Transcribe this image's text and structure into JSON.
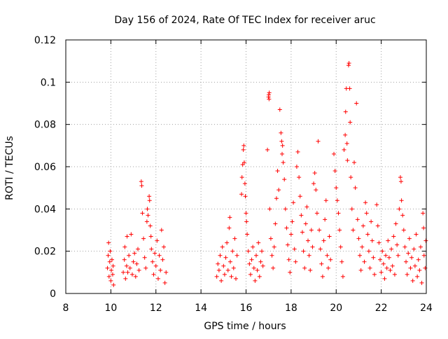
{
  "chart_data": {
    "type": "scatter",
    "title": "Day 156 of 2024, Rate Of TEC Index for receiver aruc",
    "xlabel": "GPS time / hours",
    "ylabel": "ROTI / TECUs",
    "xlim": [
      8,
      24
    ],
    "ylim": [
      0,
      0.12
    ],
    "x_ticks": [
      "8",
      "10",
      "12",
      "14",
      "16",
      "18",
      "20",
      "22",
      "24"
    ],
    "y_ticks": [
      "0",
      "0.02",
      "0.04",
      "0.06",
      "0.08",
      "0.1",
      "0.12"
    ],
    "x_tick_values": [
      8,
      10,
      12,
      14,
      16,
      18,
      20,
      22,
      24
    ],
    "y_tick_values": [
      0,
      0.02,
      0.04,
      0.06,
      0.08,
      0.1,
      0.12
    ],
    "grid": true,
    "marker": "+",
    "series_color": "#ff0000",
    "series": [
      {
        "points": [
          [
            9.85,
            0.012
          ],
          [
            9.88,
            0.018
          ],
          [
            9.9,
            0.024
          ],
          [
            9.92,
            0.008
          ],
          [
            9.95,
            0.015
          ],
          [
            9.97,
            0.02
          ],
          [
            10.0,
            0.006
          ],
          [
            10.02,
            0.011
          ],
          [
            10.05,
            0.016
          ],
          [
            10.08,
            0.009
          ],
          [
            10.1,
            0.013
          ],
          [
            10.12,
            0.004
          ],
          [
            10.55,
            0.01
          ],
          [
            10.6,
            0.016
          ],
          [
            10.62,
            0.022
          ],
          [
            10.65,
            0.007
          ],
          [
            10.7,
            0.013
          ],
          [
            10.72,
            0.027
          ],
          [
            10.75,
            0.01
          ],
          [
            10.8,
            0.018
          ],
          [
            10.85,
            0.012
          ],
          [
            10.9,
            0.028
          ],
          [
            10.95,
            0.009
          ],
          [
            11.0,
            0.015
          ],
          [
            11.05,
            0.019
          ],
          [
            11.1,
            0.008
          ],
          [
            11.15,
            0.014
          ],
          [
            11.2,
            0.021
          ],
          [
            11.25,
            0.011
          ],
          [
            11.35,
            0.053
          ],
          [
            11.37,
            0.051
          ],
          [
            11.4,
            0.038
          ],
          [
            11.45,
            0.026
          ],
          [
            11.5,
            0.017
          ],
          [
            11.55,
            0.012
          ],
          [
            11.6,
            0.034
          ],
          [
            11.62,
            0.04
          ],
          [
            11.65,
            0.037
          ],
          [
            11.7,
            0.046
          ],
          [
            11.72,
            0.044
          ],
          [
            11.75,
            0.032
          ],
          [
            11.78,
            0.027
          ],
          [
            11.8,
            0.021
          ],
          [
            11.85,
            0.015
          ],
          [
            11.9,
            0.009
          ],
          [
            11.95,
            0.019
          ],
          [
            12.0,
            0.013
          ],
          [
            12.05,
            0.025
          ],
          [
            12.1,
            0.007
          ],
          [
            12.15,
            0.018
          ],
          [
            12.2,
            0.011
          ],
          [
            12.25,
            0.03
          ],
          [
            12.3,
            0.016
          ],
          [
            12.35,
            0.022
          ],
          [
            12.4,
            0.005
          ],
          [
            12.45,
            0.01
          ],
          [
            14.7,
            0.008
          ],
          [
            14.75,
            0.014
          ],
          [
            14.8,
            0.011
          ],
          [
            14.85,
            0.018
          ],
          [
            14.9,
            0.006
          ],
          [
            14.95,
            0.022
          ],
          [
            15.0,
            0.013
          ],
          [
            15.05,
            0.009
          ],
          [
            15.1,
            0.017
          ],
          [
            15.15,
            0.024
          ],
          [
            15.2,
            0.011
          ],
          [
            15.25,
            0.031
          ],
          [
            15.28,
            0.036
          ],
          [
            15.3,
            0.015
          ],
          [
            15.35,
            0.008
          ],
          [
            15.4,
            0.02
          ],
          [
            15.45,
            0.012
          ],
          [
            15.5,
            0.026
          ],
          [
            15.55,
            0.007
          ],
          [
            15.6,
            0.018
          ],
          [
            15.8,
            0.047
          ],
          [
            15.82,
            0.055
          ],
          [
            15.85,
            0.061
          ],
          [
            15.88,
            0.068
          ],
          [
            15.9,
            0.07
          ],
          [
            15.92,
            0.062
          ],
          [
            15.95,
            0.052
          ],
          [
            15.97,
            0.046
          ],
          [
            16.0,
            0.038
          ],
          [
            16.02,
            0.034
          ],
          [
            16.05,
            0.028
          ],
          [
            16.1,
            0.02
          ],
          [
            16.15,
            0.014
          ],
          [
            16.2,
            0.009
          ],
          [
            16.25,
            0.016
          ],
          [
            16.3,
            0.022
          ],
          [
            16.35,
            0.012
          ],
          [
            16.4,
            0.006
          ],
          [
            16.45,
            0.018
          ],
          [
            16.5,
            0.011
          ],
          [
            16.55,
            0.024
          ],
          [
            16.6,
            0.008
          ],
          [
            16.65,
            0.015
          ],
          [
            16.7,
            0.02
          ],
          [
            16.75,
            0.013
          ],
          [
            16.95,
            0.068
          ],
          [
            17.0,
            0.093
          ],
          [
            17.01,
            0.094
          ],
          [
            17.02,
            0.092
          ],
          [
            17.03,
            0.095
          ],
          [
            17.05,
            0.04
          ],
          [
            17.1,
            0.026
          ],
          [
            17.15,
            0.018
          ],
          [
            17.2,
            0.012
          ],
          [
            17.25,
            0.022
          ],
          [
            17.3,
            0.033
          ],
          [
            17.35,
            0.045
          ],
          [
            17.4,
            0.058
          ],
          [
            17.45,
            0.049
          ],
          [
            17.5,
            0.087
          ],
          [
            17.55,
            0.076
          ],
          [
            17.58,
            0.072
          ],
          [
            17.6,
            0.066
          ],
          [
            17.62,
            0.07
          ],
          [
            17.65,
            0.062
          ],
          [
            17.7,
            0.054
          ],
          [
            17.75,
            0.04
          ],
          [
            17.8,
            0.031
          ],
          [
            17.85,
            0.023
          ],
          [
            17.9,
            0.016
          ],
          [
            17.95,
            0.01
          ],
          [
            18.0,
            0.028
          ],
          [
            18.05,
            0.034
          ],
          [
            18.1,
            0.043
          ],
          [
            18.15,
            0.021
          ],
          [
            18.2,
            0.015
          ],
          [
            18.25,
            0.06
          ],
          [
            18.3,
            0.067
          ],
          [
            18.35,
            0.055
          ],
          [
            18.4,
            0.046
          ],
          [
            18.45,
            0.037
          ],
          [
            18.5,
            0.029
          ],
          [
            18.55,
            0.02
          ],
          [
            18.6,
            0.012
          ],
          [
            18.65,
            0.033
          ],
          [
            18.7,
            0.041
          ],
          [
            18.75,
            0.025
          ],
          [
            18.8,
            0.018
          ],
          [
            18.85,
            0.011
          ],
          [
            18.9,
            0.03
          ],
          [
            18.95,
            0.022
          ],
          [
            19.0,
            0.052
          ],
          [
            19.05,
            0.057
          ],
          [
            19.1,
            0.049
          ],
          [
            19.15,
            0.038
          ],
          [
            19.2,
            0.072
          ],
          [
            19.25,
            0.03
          ],
          [
            19.3,
            0.021
          ],
          [
            19.35,
            0.014
          ],
          [
            19.4,
            0.008
          ],
          [
            19.45,
            0.025
          ],
          [
            19.5,
            0.035
          ],
          [
            19.55,
            0.044
          ],
          [
            19.6,
            0.018
          ],
          [
            19.65,
            0.012
          ],
          [
            19.7,
            0.027
          ],
          [
            19.75,
            0.016
          ],
          [
            19.9,
            0.066
          ],
          [
            19.95,
            0.058
          ],
          [
            20.0,
            0.05
          ],
          [
            20.05,
            0.044
          ],
          [
            20.1,
            0.038
          ],
          [
            20.15,
            0.03
          ],
          [
            20.2,
            0.022
          ],
          [
            20.25,
            0.015
          ],
          [
            20.3,
            0.008
          ],
          [
            20.35,
            0.068
          ],
          [
            20.4,
            0.075
          ],
          [
            20.42,
            0.086
          ],
          [
            20.45,
            0.097
          ],
          [
            20.48,
            0.071
          ],
          [
            20.5,
            0.063
          ],
          [
            20.55,
            0.108
          ],
          [
            20.57,
            0.109
          ],
          [
            20.6,
            0.097
          ],
          [
            20.62,
            0.081
          ],
          [
            20.65,
            0.055
          ],
          [
            20.7,
            0.04
          ],
          [
            20.75,
            0.03
          ],
          [
            20.8,
            0.062
          ],
          [
            20.85,
            0.05
          ],
          [
            20.9,
            0.09
          ],
          [
            20.95,
            0.035
          ],
          [
            21.0,
            0.026
          ],
          [
            21.05,
            0.018
          ],
          [
            21.1,
            0.011
          ],
          [
            21.15,
            0.022
          ],
          [
            21.2,
            0.032
          ],
          [
            21.25,
            0.015
          ],
          [
            21.3,
            0.043
          ],
          [
            21.35,
            0.038
          ],
          [
            21.4,
            0.028
          ],
          [
            21.45,
            0.02
          ],
          [
            21.5,
            0.012
          ],
          [
            21.55,
            0.034
          ],
          [
            21.6,
            0.025
          ],
          [
            21.65,
            0.017
          ],
          [
            21.7,
            0.009
          ],
          [
            21.8,
            0.042
          ],
          [
            21.85,
            0.032
          ],
          [
            21.9,
            0.024
          ],
          [
            21.95,
            0.016
          ],
          [
            22.0,
            0.01
          ],
          [
            22.05,
            0.02
          ],
          [
            22.1,
            0.014
          ],
          [
            22.15,
            0.007
          ],
          [
            22.2,
            0.018
          ],
          [
            22.25,
            0.012
          ],
          [
            22.3,
            0.025
          ],
          [
            22.35,
            0.017
          ],
          [
            22.4,
            0.011
          ],
          [
            22.45,
            0.021
          ],
          [
            22.5,
            0.013
          ],
          [
            22.55,
            0.027
          ],
          [
            22.6,
            0.009
          ],
          [
            22.65,
            0.033
          ],
          [
            22.7,
            0.023
          ],
          [
            22.75,
            0.018
          ],
          [
            22.8,
            0.04
          ],
          [
            22.85,
            0.055
          ],
          [
            22.88,
            0.053
          ],
          [
            22.9,
            0.044
          ],
          [
            22.95,
            0.037
          ],
          [
            23.0,
            0.03
          ],
          [
            23.05,
            0.022
          ],
          [
            23.1,
            0.015
          ],
          [
            23.15,
            0.009
          ],
          [
            23.2,
            0.019
          ],
          [
            23.25,
            0.026
          ],
          [
            23.3,
            0.012
          ],
          [
            23.35,
            0.017
          ],
          [
            23.4,
            0.006
          ],
          [
            23.45,
            0.021
          ],
          [
            23.5,
            0.013
          ],
          [
            23.55,
            0.028
          ],
          [
            23.6,
            0.008
          ],
          [
            23.65,
            0.016
          ],
          [
            23.7,
            0.011
          ],
          [
            23.75,
            0.022
          ],
          [
            23.8,
            0.005
          ],
          [
            23.85,
            0.038
          ],
          [
            23.88,
            0.031
          ],
          [
            23.9,
            0.018
          ],
          [
            23.95,
            0.012
          ],
          [
            23.98,
            0.025
          ]
        ]
      }
    ]
  }
}
